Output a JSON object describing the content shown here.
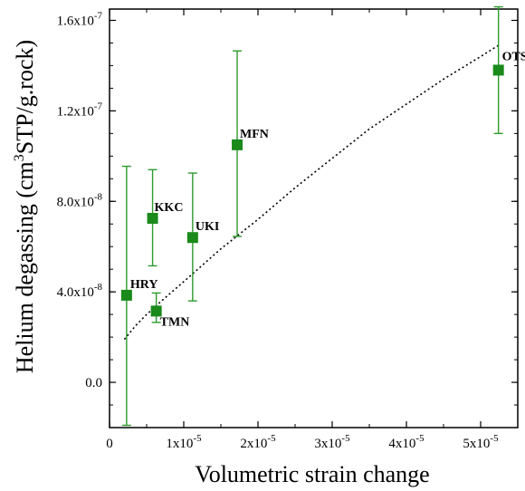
{
  "chart_data": {
    "type": "scatter",
    "title": "",
    "xlabel": "Volumetric strain change",
    "ylabel": "Helium degassing (cm³STP/g.rock)",
    "xlim": [
      0,
      5.5e-05
    ],
    "ylim": [
      -2e-08,
      1.65e-07
    ],
    "grid": false,
    "legend": "none",
    "x_ticks": [
      {
        "value": 0,
        "label": "0"
      },
      {
        "value": 1e-05,
        "label": "1x10⁻⁵"
      },
      {
        "value": 2e-05,
        "label": "2x10⁻⁵"
      },
      {
        "value": 3e-05,
        "label": "3x10⁻⁵"
      },
      {
        "value": 4e-05,
        "label": "4x10⁻⁵"
      },
      {
        "value": 5e-05,
        "label": "5x10⁻⁵"
      }
    ],
    "y_ticks": [
      {
        "value": 0,
        "label": "0.0"
      },
      {
        "value": 4e-08,
        "label": "4.0x10⁻⁸"
      },
      {
        "value": 8e-08,
        "label": "8.0x10⁻⁸"
      },
      {
        "value": 1.2e-07,
        "label": "1.2x10⁻⁷"
      },
      {
        "value": 1.6e-07,
        "label": "1.6x10⁻⁷"
      }
    ],
    "marker_color": "#1a8a1a",
    "errorbar_color": "#2e9a2e",
    "points": [
      {
        "label": "HRY",
        "x": 2.3e-06,
        "y": 3.85e-08,
        "ylo": -1.9e-08,
        "yhi": 9.55e-08
      },
      {
        "label": "TMN",
        "x": 6.3e-06,
        "y": 3.15e-08,
        "ylo": 2.65e-08,
        "yhi": 3.95e-08
      },
      {
        "label": "KKC",
        "x": 5.8e-06,
        "y": 7.25e-08,
        "ylo": 5.15e-08,
        "yhi": 9.4e-08
      },
      {
        "label": "UKI",
        "x": 1.12e-05,
        "y": 6.4e-08,
        "ylo": 3.6e-08,
        "yhi": 9.25e-08
      },
      {
        "label": "MFN",
        "x": 1.72e-05,
        "y": 1.05e-07,
        "ylo": 6.45e-08,
        "yhi": 1.465e-07
      },
      {
        "label": "OTS",
        "x": 5.24e-05,
        "y": 1.38e-07,
        "ylo": 1.1e-07,
        "yhi": 1.66e-07
      }
    ],
    "fit_curve": {
      "style": "dotted",
      "color": "#000000",
      "x": [
        2e-06,
        3.5e-06,
        5e-06,
        7e-06,
        1e-05,
        1.5e-05,
        2e-05,
        2.5e-05,
        3e-05,
        3.5e-05,
        4e-05,
        4.5e-05,
        5e-05,
        5.24e-05
      ],
      "y": [
        1.9e-08,
        2.5e-08,
        3e-08,
        3.6e-08,
        4.45e-08,
        5.9e-08,
        7.2e-08,
        8.6e-08,
        9.9e-08,
        1.12e-07,
        1.23e-07,
        1.34e-07,
        1.44e-07,
        1.49e-07
      ]
    }
  }
}
